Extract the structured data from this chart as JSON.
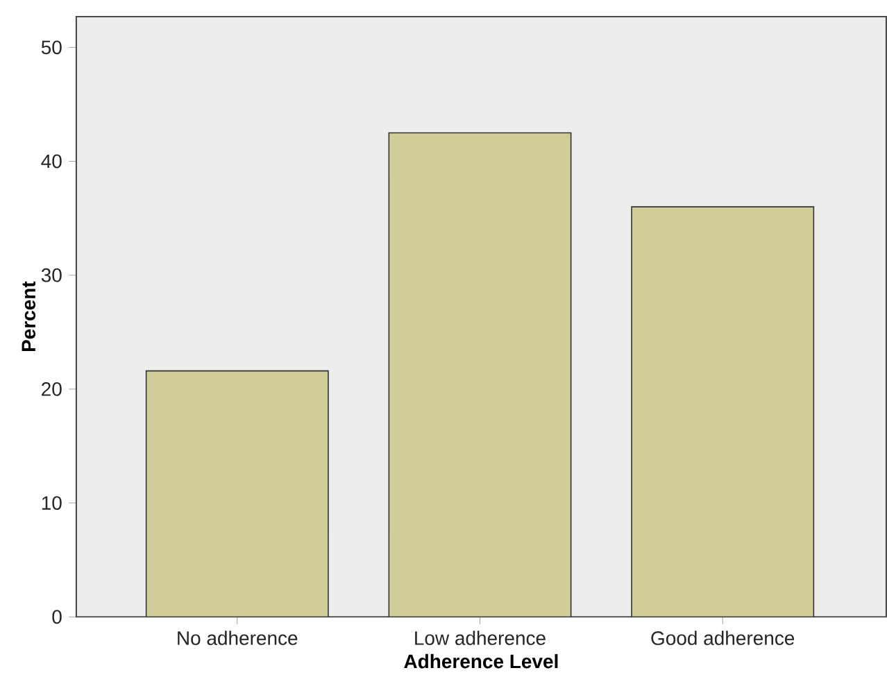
{
  "chart_data": {
    "type": "bar",
    "xlabel": "Adherence Level",
    "ylabel": "Percent",
    "categories": [
      "No adherence",
      "Low adherence",
      "Good adherence"
    ],
    "values": [
      21.6,
      42.5,
      36.0
    ],
    "color": "#d0cd98",
    "ylim": [
      0,
      52.7
    ],
    "yticks": [
      0,
      10,
      20,
      30,
      40,
      50
    ]
  }
}
